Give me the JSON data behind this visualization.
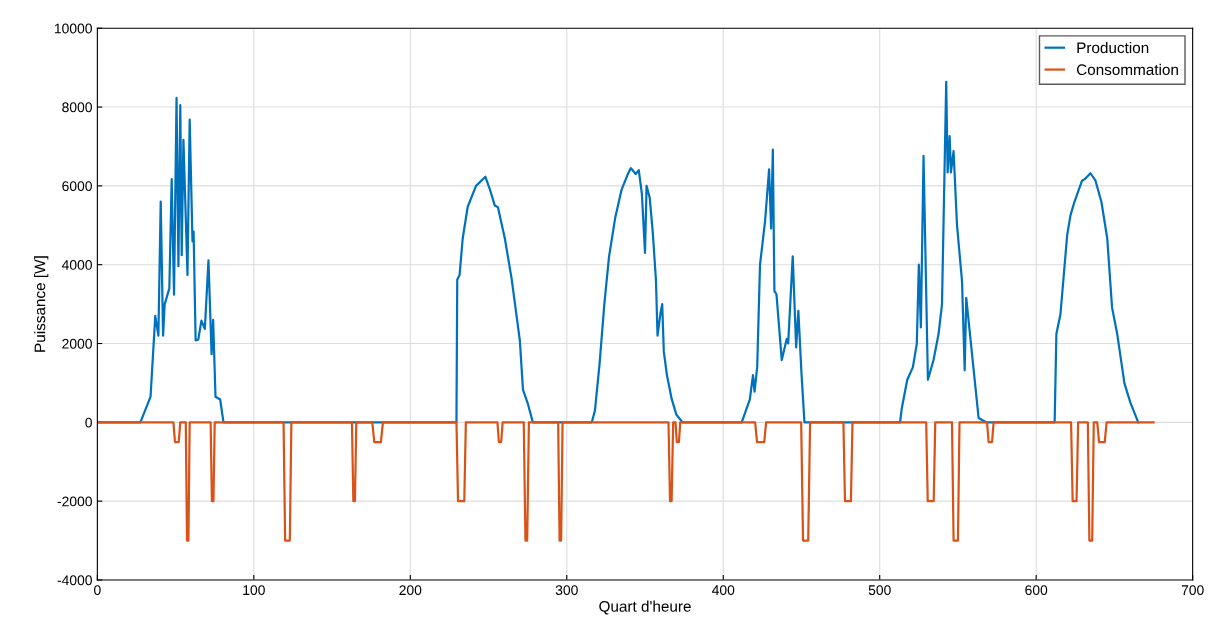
{
  "chart_data": {
    "type": "line",
    "xlabel": "Quart d'heure",
    "ylabel": "Puissance [W]",
    "xlim": [
      0,
      700
    ],
    "xticks": [
      0,
      100,
      200,
      300,
      400,
      500,
      600,
      700
    ],
    "ylim": [
      -4000,
      10000
    ],
    "yticks": [
      -4000,
      -2000,
      0,
      2000,
      4000,
      6000,
      8000,
      10000
    ],
    "grid": true,
    "legend": "top right",
    "marker": "none",
    "line_style": "solid",
    "series": [
      {
        "name": "Production",
        "color": "#0072bd",
        "x": [
          0,
          27.5,
          34,
          37,
          39,
          40.5,
          42,
          43,
          46,
          47.5,
          49,
          50.6,
          51.8,
          53,
          53.9,
          55,
          57.6,
          59,
          60.8,
          61.5,
          62.8,
          64.5,
          66.5,
          68.7,
          71,
          73,
          74,
          75.5,
          78.5,
          80.6,
          229.5,
          230,
          231.5,
          233.5,
          236.7,
          242,
          248,
          250.8,
          254,
          256,
          260.4,
          264.7,
          270,
          272,
          275,
          278.3,
          316,
          318,
          321,
          324,
          327,
          331,
          335,
          339,
          341,
          344,
          346,
          348,
          350,
          351,
          353,
          355,
          357,
          358,
          360,
          361,
          362,
          364,
          367,
          370,
          374,
          411.8,
          417,
          419,
          420,
          421.7,
          423.5,
          426.7,
          429.3,
          430.6,
          431.7,
          432.7,
          434,
          437.4,
          440.6,
          441.5,
          444.4,
          446.6,
          448,
          450,
          451.9,
          513,
          514,
          517.6,
          521.2,
          523.7,
          525,
          526.3,
          528,
          530.8,
          534.4,
          537.6,
          539.8,
          542.5,
          543.4,
          544.7,
          545.5,
          547.2,
          549.4,
          552.6,
          554.3,
          555.3,
          563.2,
          568,
          611.8,
          612.9,
          615.5,
          619.8,
          621.9,
          624.4,
          629.3,
          631,
          634.7,
          637.9,
          641.7,
          645.4,
          648.5,
          651.8,
          656.4,
          660.2,
          665.2
        ],
        "values": [
          0,
          0,
          650,
          2700,
          2200,
          5600,
          2200,
          2990,
          3400,
          6170,
          3240,
          8230,
          3960,
          8050,
          4240,
          7170,
          3740,
          7680,
          4590,
          4840,
          2080,
          2100,
          2580,
          2370,
          4110,
          1730,
          2600,
          650,
          580,
          0,
          0,
          3620,
          3740,
          4670,
          5470,
          6000,
          6230,
          5920,
          5500,
          5460,
          4670,
          3660,
          2080,
          830,
          490,
          0,
          0,
          300,
          1500,
          3000,
          4200,
          5200,
          5900,
          6300,
          6450,
          6300,
          6400,
          5800,
          4300,
          6000,
          5700,
          4800,
          3600,
          2200,
          2800,
          3000,
          1800,
          1200,
          600,
          200,
          0,
          0,
          580,
          1200,
          780,
          1400,
          4000,
          5090,
          6420,
          4920,
          6920,
          3330,
          3250,
          1580,
          2120,
          2000,
          4210,
          1900,
          2830,
          1240,
          0,
          0,
          330,
          1080,
          1400,
          1990,
          4000,
          2410,
          6760,
          1080,
          1580,
          2240,
          2990,
          8640,
          6340,
          7260,
          6340,
          6880,
          5000,
          3580,
          1320,
          3160,
          110,
          0,
          0,
          2240,
          2740,
          4750,
          5250,
          5590,
          6130,
          6170,
          6320,
          6130,
          5590,
          4670,
          2910,
          2240,
          990,
          500,
          0
        ]
      },
      {
        "name": "Consommation",
        "color": "#d95319",
        "x": [
          0,
          48.6,
          49.6,
          52,
          53,
          56.5,
          57.3,
          58.2,
          59,
          72.4,
          73.2,
          74.2,
          75,
          119,
          120,
          123,
          124,
          162.7,
          163.6,
          164.6,
          165.5,
          175.7,
          177,
          181.2,
          182.5,
          229.5,
          230.5,
          234.5,
          235.5,
          255.7,
          256.6,
          258.1,
          259,
          272.5,
          273.6,
          274.7,
          275.8,
          294.5,
          295.4,
          296.4,
          297.3,
          365,
          366,
          367,
          368,
          369.5,
          370.3,
          371.7,
          372.5,
          420.4,
          421.6,
          426.2,
          427.4,
          449.8,
          451,
          454.3,
          455.5,
          476.8,
          477.8,
          481.6,
          482.6,
          529.7,
          530.7,
          534.5,
          535.5,
          546.2,
          547.2,
          550,
          551,
          568.6,
          569.6,
          571.8,
          572.8,
          622.3,
          623.3,
          625.8,
          626.8,
          633,
          634,
          635.8,
          636.8,
          639,
          640.2,
          643.8,
          645,
          675
        ],
        "values": [
          0,
          0,
          -500,
          -500,
          0,
          0,
          -3000,
          -3000,
          0,
          0,
          -2000,
          -2000,
          0,
          0,
          -3000,
          -3000,
          0,
          0,
          -2000,
          -2000,
          0,
          0,
          -500,
          -500,
          0,
          0,
          -2000,
          -2000,
          0,
          0,
          -500,
          -500,
          0,
          0,
          -3000,
          -3000,
          0,
          0,
          -3000,
          -3000,
          0,
          0,
          -2000,
          -2000,
          0,
          0,
          -500,
          -500,
          0,
          0,
          -500,
          -500,
          0,
          0,
          -3000,
          -3000,
          0,
          0,
          -2000,
          -2000,
          0,
          0,
          -2000,
          -2000,
          0,
          0,
          -3000,
          -3000,
          0,
          0,
          -500,
          -500,
          0,
          0,
          -2000,
          -2000,
          0,
          0,
          -3000,
          -3000,
          0,
          0,
          -500,
          -500,
          0,
          0
        ]
      }
    ]
  }
}
